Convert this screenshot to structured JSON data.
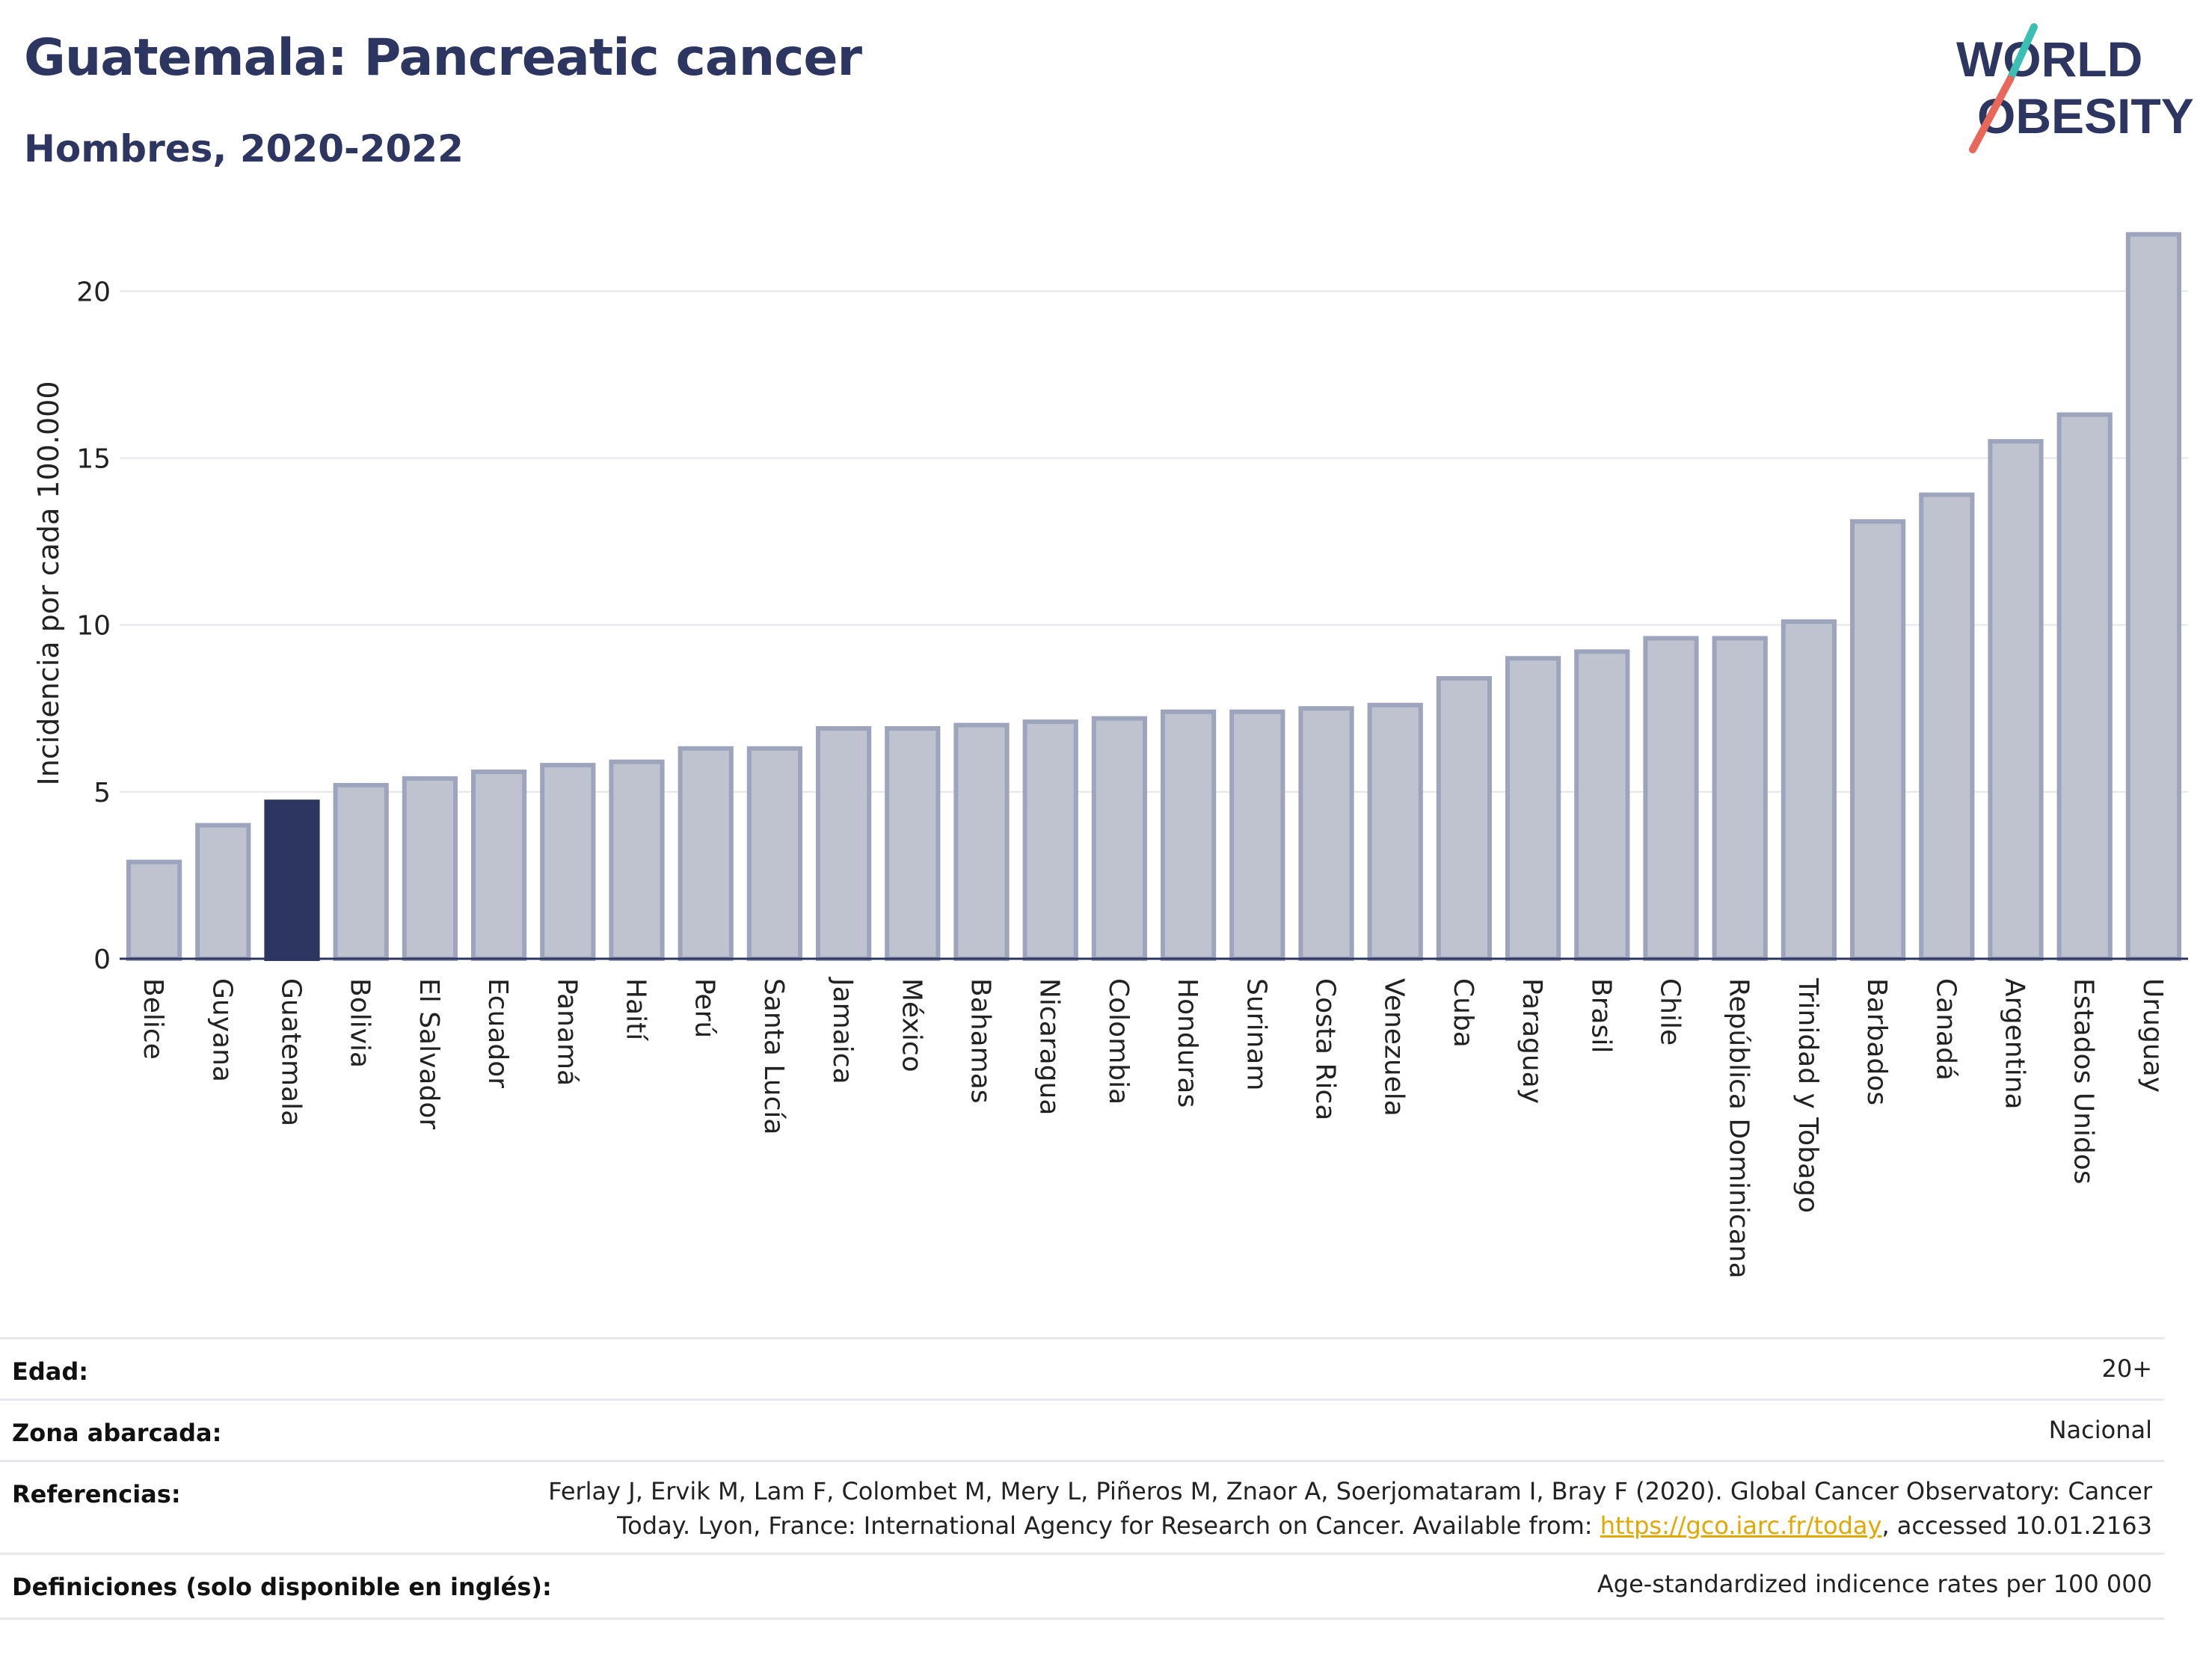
{
  "header": {
    "title": "Guatemala: Pancreatic cancer",
    "subtitle": "Hombres, 2020-2022"
  },
  "logo": {
    "line1": "WORLD",
    "line2": "OBESITY"
  },
  "colors": {
    "highlight": "#2c3660",
    "bar_fill": "#bfc3d0",
    "bar_stroke": "#9ea4bb",
    "logo_teal": "#3bbfb2",
    "logo_red": "#e8665a",
    "link": "#e0a800"
  },
  "chart_data": {
    "type": "bar",
    "ylabel": "Incidencia por cada 100.000",
    "ylim": [
      0,
      22
    ],
    "yticks": [
      0,
      5,
      10,
      15,
      20
    ],
    "grid": true,
    "highlight": "Guatemala",
    "categories": [
      "Belice",
      "Guyana",
      "Guatemala",
      "Bolivia",
      "El Salvador",
      "Ecuador",
      "Panamá",
      "Haití",
      "Perú",
      "Santa Lucía",
      "Jamaica",
      "México",
      "Bahamas",
      "Nicaragua",
      "Colombia",
      "Honduras",
      "Surinam",
      "Costa Rica",
      "Venezuela",
      "Cuba",
      "Paraguay",
      "Brasil",
      "Chile",
      "República Dominicana",
      "Trinidad y Tobago",
      "Barbados",
      "Canadá",
      "Argentina",
      "Estados Unidos",
      "Uruguay"
    ],
    "values": [
      2.9,
      4.0,
      4.7,
      5.2,
      5.4,
      5.6,
      5.8,
      5.9,
      6.3,
      6.3,
      6.9,
      6.9,
      7.0,
      7.1,
      7.2,
      7.4,
      7.4,
      7.5,
      7.6,
      8.4,
      9.0,
      9.2,
      9.6,
      9.6,
      10.1,
      13.1,
      13.9,
      15.5,
      16.3,
      21.7
    ]
  },
  "meta": {
    "rows": [
      {
        "key": "Edad:",
        "value": "20+"
      },
      {
        "key": "Zona abarcada:",
        "value": "Nacional"
      },
      {
        "key": "Referencias:",
        "value_line1": "Ferlay J, Ervik M, Lam F, Colombet M, Mery L, Piñeros M, Znaor A, Soerjomataram I, Bray F (2020). Global Cancer Observatory: Cancer",
        "value_line2_pre": "Today. Lyon, France: International Agency for Research on Cancer. Available from: ",
        "value_link": "https://gco.iarc.fr/today",
        "value_line2_post": ", accessed 10.01.2163"
      },
      {
        "key": "Definiciones (solo disponible en inglés):",
        "value": "Age-standardized indicence rates per 100 000"
      }
    ]
  }
}
